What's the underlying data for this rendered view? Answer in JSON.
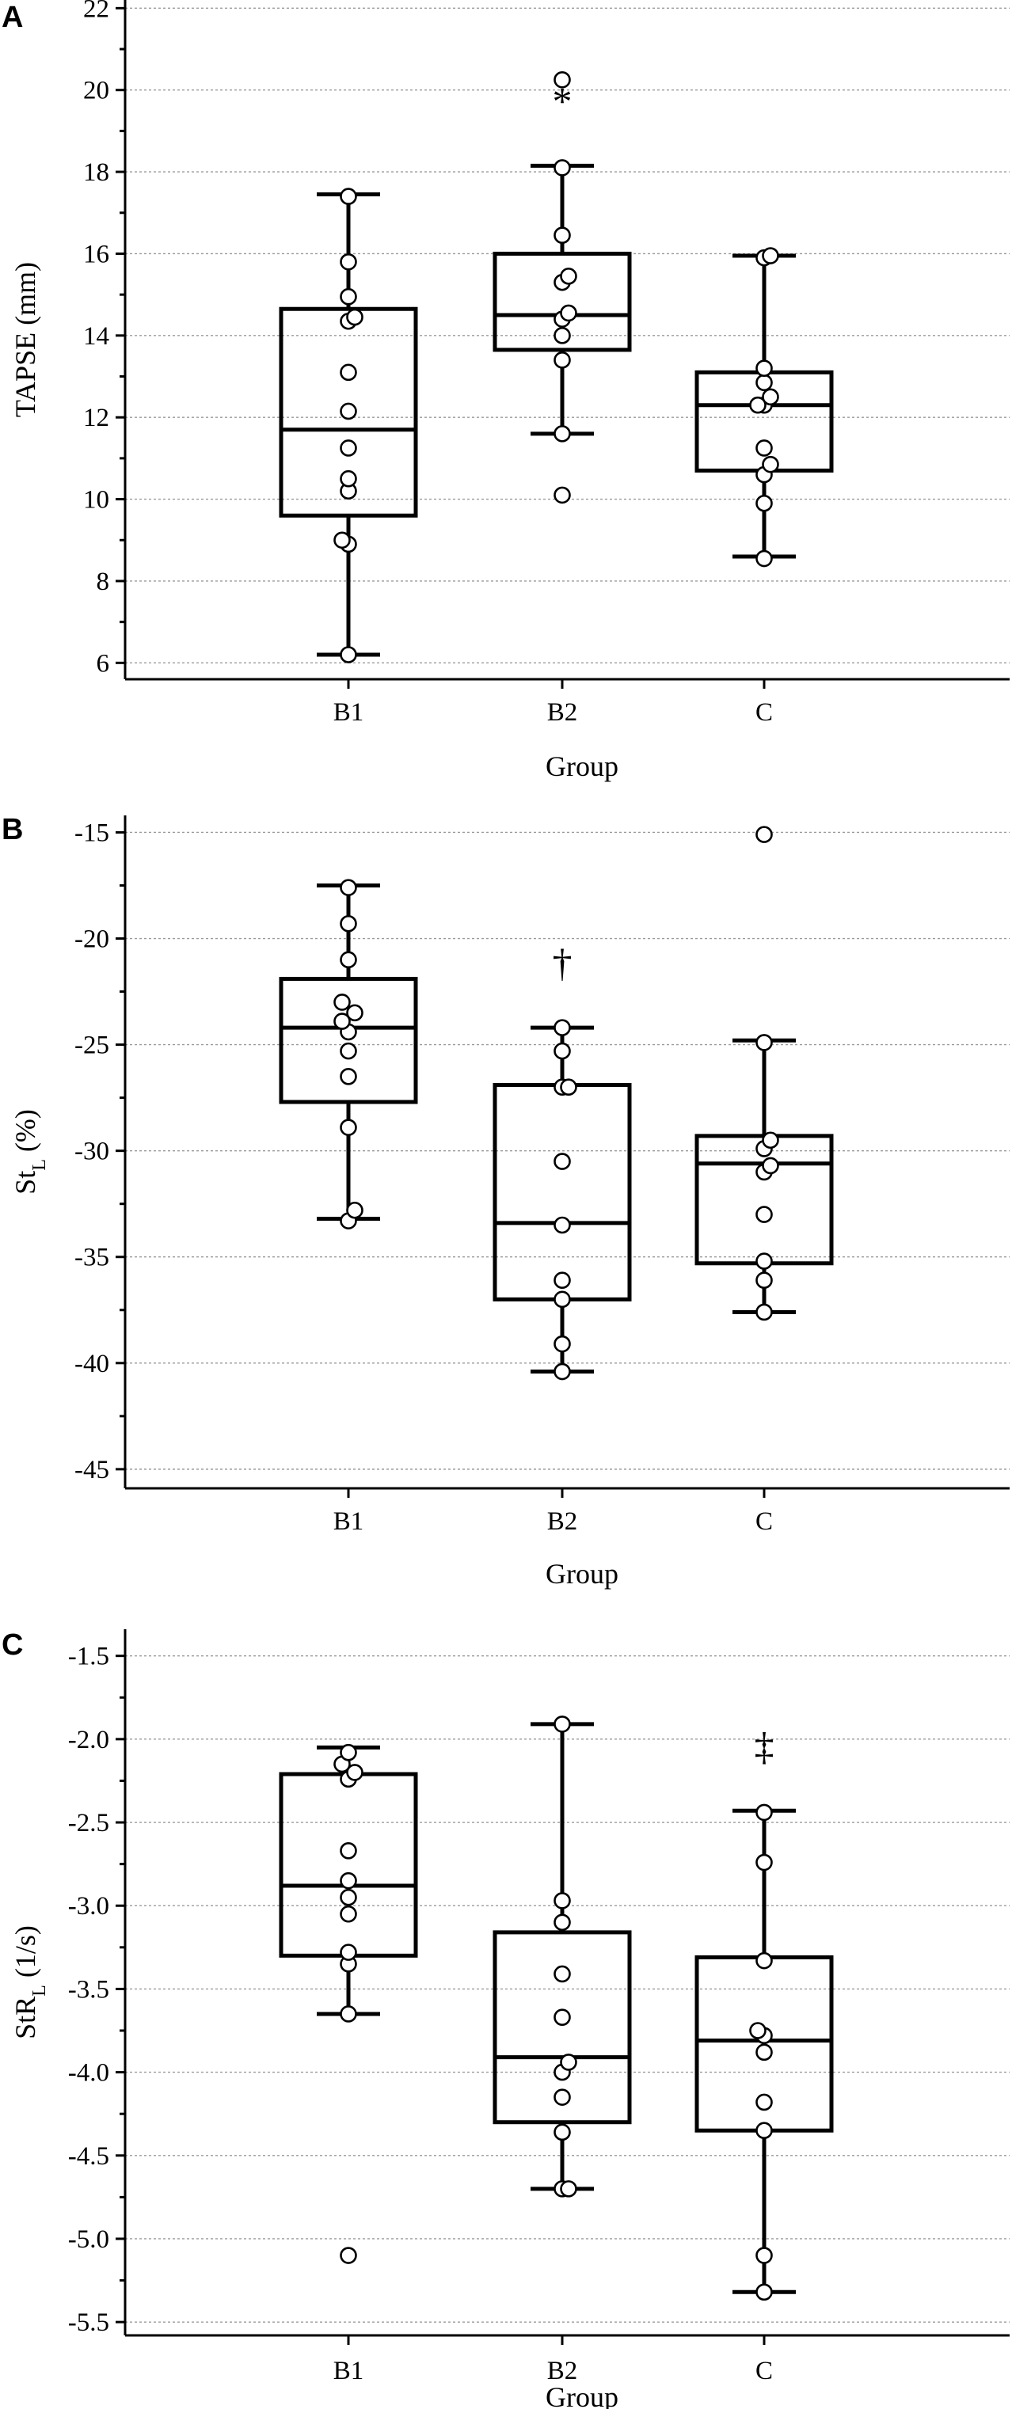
{
  "chart_data": [
    {
      "panel_label": "A",
      "type": "box",
      "ylabel_main": "TAPSE (mm)",
      "ylabel_sub": "",
      "ylabel_after": "",
      "xlabel": "Group",
      "categories": [
        "B1",
        "B2",
        "C"
      ],
      "ylim": [
        5.6,
        22.2
      ],
      "yticks": [
        6,
        8,
        10,
        12,
        14,
        16,
        18,
        20,
        22
      ],
      "ytick_labels": [
        "6",
        "8",
        "10",
        "12",
        "14",
        "16",
        "18",
        "20",
        "22"
      ],
      "grid": true,
      "boxes": [
        {
          "q1": 9.6,
          "median": 11.7,
          "q3": 14.65,
          "whisker_low": 6.2,
          "whisker_high": 17.45,
          "significance": "",
          "points": [
            6.2,
            8.9,
            9.0,
            10.2,
            10.5,
            11.25,
            12.15,
            13.1,
            14.35,
            14.45,
            14.95,
            15.8,
            17.4
          ]
        },
        {
          "q1": 13.65,
          "median": 14.5,
          "q3": 16.0,
          "whisker_low": 11.6,
          "whisker_high": 18.15,
          "significance": "*",
          "points": [
            10.1,
            11.6,
            13.4,
            14.0,
            14.4,
            14.55,
            15.3,
            15.45,
            16.45,
            18.1,
            20.25
          ]
        },
        {
          "q1": 10.7,
          "median": 12.3,
          "q3": 13.1,
          "whisker_low": 8.6,
          "whisker_high": 15.95,
          "significance": "",
          "points": [
            8.55,
            9.9,
            10.6,
            10.85,
            11.25,
            12.3,
            12.3,
            12.5,
            12.85,
            13.2,
            15.9,
            15.95
          ]
        }
      ]
    },
    {
      "panel_label": "B",
      "type": "box",
      "ylabel_main": "St",
      "ylabel_sub": "L",
      "ylabel_after": " (%)",
      "xlabel": "Group",
      "categories": [
        "B1",
        "B2",
        "C"
      ],
      "ylim": [
        -45.9,
        -14.2
      ],
      "yticks": [
        -45,
        -40,
        -35,
        -30,
        -25,
        -20,
        -15
      ],
      "ytick_labels": [
        "-45",
        "-40",
        "-35",
        "-30",
        "-25",
        "-20",
        "-15"
      ],
      "grid": true,
      "boxes": [
        {
          "q1": -27.7,
          "median": -24.2,
          "q3": -21.9,
          "whisker_low": -33.2,
          "whisker_high": -17.5,
          "significance": "",
          "points": [
            -33.3,
            -32.8,
            -28.9,
            -26.5,
            -25.3,
            -24.4,
            -23.9,
            -23.5,
            -23.0,
            -21.0,
            -19.3,
            -17.6
          ]
        },
        {
          "q1": -37.0,
          "median": -33.4,
          "q3": -26.9,
          "whisker_low": -40.4,
          "whisker_high": -24.2,
          "significance": "†",
          "points": [
            -40.4,
            -39.1,
            -37.0,
            -36.1,
            -33.5,
            -30.5,
            -27.0,
            -27.0,
            -25.3,
            -24.2
          ]
        },
        {
          "q1": -35.3,
          "median": -30.6,
          "q3": -29.3,
          "whisker_low": -37.6,
          "whisker_high": -24.8,
          "significance": "",
          "points": [
            -37.6,
            -36.1,
            -35.2,
            -33.0,
            -31.0,
            -30.7,
            -29.9,
            -29.5,
            -24.9,
            -15.1
          ]
        }
      ]
    },
    {
      "panel_label": "C",
      "type": "box",
      "ylabel_main": "StR",
      "ylabel_sub": "L",
      "ylabel_after": " (1/s)",
      "xlabel": "Group",
      "categories": [
        "B1",
        "B2",
        "C"
      ],
      "ylim": [
        -5.58,
        -1.34
      ],
      "yticks": [
        -5.5,
        -5.0,
        -4.5,
        -4.0,
        -3.5,
        -3.0,
        -2.5,
        -2.0,
        -1.5
      ],
      "ytick_labels": [
        "-5.5",
        "-5.0",
        "-4.5",
        "-4.0",
        "-3.5",
        "-3.0",
        "-2.5",
        "-2.0",
        "-1.5"
      ],
      "grid": true,
      "boxes": [
        {
          "q1": -3.3,
          "median": -2.88,
          "q3": -2.21,
          "whisker_low": -3.65,
          "whisker_high": -2.05,
          "significance": "",
          "points": [
            -5.1,
            -3.65,
            -3.35,
            -3.28,
            -3.05,
            -2.95,
            -2.85,
            -2.67,
            -2.24,
            -2.2,
            -2.15,
            -2.08
          ]
        },
        {
          "q1": -4.3,
          "median": -3.91,
          "q3": -3.16,
          "whisker_low": -4.7,
          "whisker_high": -1.91,
          "significance": "",
          "points": [
            -4.7,
            -4.7,
            -4.36,
            -4.15,
            -4.0,
            -3.94,
            -3.67,
            -3.41,
            -3.1,
            -2.97,
            -1.91
          ]
        },
        {
          "q1": -4.35,
          "median": -3.81,
          "q3": -3.31,
          "whisker_low": -5.32,
          "whisker_high": -2.43,
          "significance": "‡",
          "points": [
            -5.32,
            -5.1,
            -4.35,
            -4.18,
            -3.88,
            -3.78,
            -3.75,
            -3.33,
            -2.74,
            -2.44
          ]
        }
      ]
    }
  ]
}
